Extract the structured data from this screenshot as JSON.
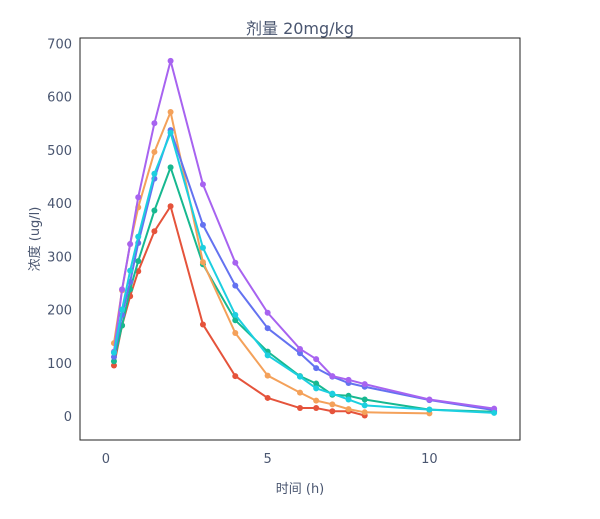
{
  "chart_data": {
    "type": "line",
    "title": "剂量 20mg/kg",
    "xlabel": "时间 (h)",
    "ylabel": "浓度 (ug/l)",
    "xlim": [
      -0.8,
      12.8
    ],
    "ylim": [
      -45,
      710
    ],
    "xticks": [
      0,
      5,
      10
    ],
    "yticks": [
      0,
      100,
      200,
      300,
      400,
      500,
      600,
      700
    ],
    "legend": "none",
    "grid": false,
    "series": [
      {
        "color": "#e5533b",
        "points": [
          [
            0.25,
            95
          ],
          [
            0.5,
            170
          ],
          [
            0.75,
            225
          ],
          [
            1,
            272
          ],
          [
            1.5,
            347
          ],
          [
            2,
            394
          ],
          [
            3,
            172
          ],
          [
            4,
            75
          ],
          [
            5,
            34
          ],
          [
            6,
            15
          ],
          [
            6.5,
            15
          ],
          [
            7,
            9
          ],
          [
            7.5,
            9
          ],
          [
            8,
            1
          ]
        ]
      },
      {
        "color": "#17b890",
        "points": [
          [
            0.25,
            103
          ],
          [
            0.5,
            170
          ],
          [
            0.75,
            238
          ],
          [
            1,
            291
          ],
          [
            1.5,
            386
          ],
          [
            2,
            467
          ],
          [
            3,
            285
          ],
          [
            4,
            180
          ],
          [
            5,
            121
          ],
          [
            6,
            75
          ],
          [
            6.5,
            61
          ],
          [
            7,
            40
          ],
          [
            7.5,
            38
          ],
          [
            8,
            31
          ],
          [
            10,
            12
          ],
          [
            12,
            8
          ]
        ]
      },
      {
        "color": "#f4a15a",
        "points": [
          [
            0.25,
            137
          ],
          [
            0.5,
            236
          ],
          [
            0.75,
            323
          ],
          [
            1,
            392
          ],
          [
            1.5,
            496
          ],
          [
            2,
            571
          ],
          [
            3,
            289
          ],
          [
            4,
            156
          ],
          [
            5,
            76
          ],
          [
            6,
            44
          ],
          [
            6.5,
            29
          ],
          [
            7,
            22
          ],
          [
            7.5,
            13
          ],
          [
            8,
            7
          ],
          [
            10,
            5
          ]
        ]
      },
      {
        "color": "#6472f0",
        "points": [
          [
            0.25,
            111
          ],
          [
            0.5,
            190
          ],
          [
            0.75,
            252
          ],
          [
            1,
            325
          ],
          [
            1.5,
            446
          ],
          [
            2,
            537
          ],
          [
            3,
            359
          ],
          [
            4,
            245
          ],
          [
            5,
            165
          ],
          [
            6,
            118
          ],
          [
            6.5,
            90
          ],
          [
            7,
            74
          ],
          [
            7.5,
            62
          ],
          [
            8,
            55
          ],
          [
            10,
            30
          ],
          [
            12,
            11
          ]
        ]
      },
      {
        "color": "#a763f0",
        "points": [
          [
            0.25,
            121
          ],
          [
            0.5,
            238
          ],
          [
            0.75,
            323
          ],
          [
            1,
            411
          ],
          [
            1.5,
            550
          ],
          [
            2,
            667
          ],
          [
            3,
            435
          ],
          [
            4,
            288
          ],
          [
            5,
            194
          ],
          [
            6,
            126
          ],
          [
            6.5,
            107
          ],
          [
            7,
            75
          ],
          [
            7.5,
            68
          ],
          [
            8,
            60
          ],
          [
            10,
            31
          ],
          [
            12,
            14
          ]
        ]
      },
      {
        "color": "#1ccfe0",
        "points": [
          [
            0.25,
            119
          ],
          [
            0.5,
            200
          ],
          [
            0.75,
            273
          ],
          [
            1,
            337
          ],
          [
            1.5,
            455
          ],
          [
            2,
            532
          ],
          [
            3,
            316
          ],
          [
            4,
            190
          ],
          [
            5,
            114
          ],
          [
            6,
            74
          ],
          [
            6.5,
            52
          ],
          [
            7,
            42
          ],
          [
            7.5,
            31
          ],
          [
            8,
            20
          ],
          [
            10,
            12
          ],
          [
            12,
            6
          ]
        ]
      }
    ]
  }
}
